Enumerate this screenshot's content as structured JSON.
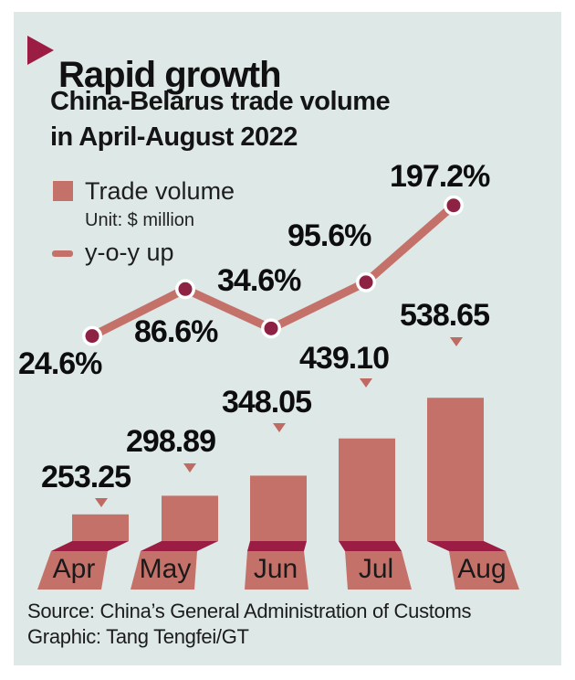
{
  "title": "Rapid growth",
  "subtitle_line1": "China-Belarus trade volume",
  "subtitle_line2": "in April-August 2022",
  "legend": {
    "series1_label": "Trade volume",
    "series1_unit": "Unit: $ million",
    "series2_label": "y-o-y up"
  },
  "source_line1": "Source: China’s General Administration of Customs",
  "source_line2": "Graphic: Tang Tengfei/GT",
  "colors": {
    "panel_bg": "#dee8e7",
    "salmon": "#c4716a",
    "crimson_band": "#9c1d43",
    "point_fill": "#8e2244",
    "marker_triangle": "#bf6a62",
    "text": "#111111"
  },
  "chart_data": {
    "type": "combo",
    "categories": [
      "Apr",
      "May",
      "Jun",
      "Jul",
      "Aug"
    ],
    "series": [
      {
        "name": "Trade volume",
        "type": "bar",
        "unit": "$ million",
        "values": [
          253.25,
          298.89,
          348.05,
          439.1,
          538.65
        ],
        "labels": [
          "253.25",
          "298.89",
          "348.05",
          "439.10",
          "538.65"
        ],
        "color": "#c4716a"
      },
      {
        "name": "y-o-y up",
        "type": "line",
        "unit": "percent",
        "values": [
          24.6,
          86.6,
          34.6,
          95.6,
          197.2
        ],
        "labels": [
          "24.6%",
          "86.6%",
          "34.6%",
          "95.6%",
          "197.2%"
        ],
        "color": "#c4716a",
        "point_color": "#8e2244"
      }
    ],
    "legend_position": "top-left",
    "grid": false,
    "axes_hidden": true,
    "x_labels_on_pedestals": true
  }
}
